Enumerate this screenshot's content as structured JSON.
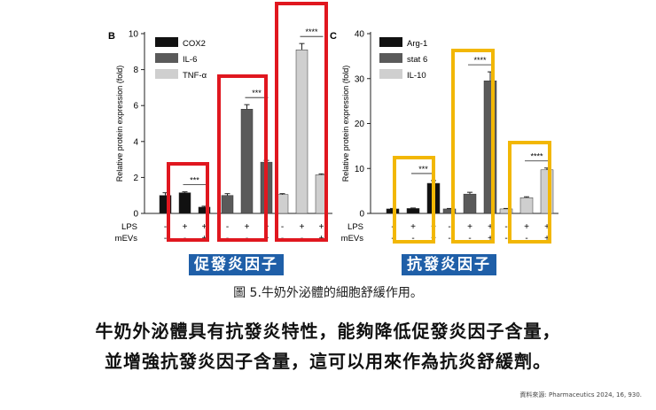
{
  "chart_data": [
    {
      "type": "bar",
      "panel_letter": "B",
      "ylabel": "Relative protein expression (fold)",
      "ylim": [
        0,
        10
      ],
      "yticks": [
        "0",
        "2",
        "4",
        "6",
        "8",
        "10"
      ],
      "legend": [
        "COX2",
        "IL-6",
        "TNF-α"
      ],
      "legend_position": "top-left",
      "row_labels": [
        "LPS",
        "mEVs"
      ],
      "groups": [
        {
          "name": "COX2",
          "lps": [
            "-",
            "+",
            "+"
          ],
          "mevs": [
            "-",
            "-",
            "+"
          ],
          "values": [
            1.0,
            1.15,
            0.35
          ],
          "errors": [
            0.15,
            0.05,
            0.05
          ],
          "sig": "***"
        },
        {
          "name": "IL-6",
          "lps": [
            "-",
            "+",
            "+"
          ],
          "mevs": [
            "-",
            "-",
            "+"
          ],
          "values": [
            1.0,
            5.8,
            2.85
          ],
          "errors": [
            0.1,
            0.25,
            0.1
          ],
          "sig": "***"
        },
        {
          "name": "TNF-α",
          "lps": [
            "-",
            "+",
            "+"
          ],
          "mevs": [
            "-",
            "-",
            "+"
          ],
          "values": [
            1.05,
            9.1,
            2.15
          ],
          "errors": [
            0.05,
            0.35,
            0.05
          ],
          "sig": "****"
        }
      ]
    },
    {
      "type": "bar",
      "panel_letter": "C",
      "ylabel": "Relative protein expression (fold)",
      "ylim": [
        0,
        40
      ],
      "yticks": [
        "0",
        "10",
        "20",
        "30",
        "40"
      ],
      "legend": [
        "Arg-1",
        "stat 6",
        "IL-10"
      ],
      "legend_position": "top-left",
      "row_labels": [
        "LPS",
        "mEVs"
      ],
      "groups": [
        {
          "name": "Arg-1",
          "lps": [
            "-",
            "+",
            "+"
          ],
          "mevs": [
            "-",
            "-",
            "+"
          ],
          "values": [
            1.0,
            1.1,
            6.7
          ],
          "errors": [
            0.1,
            0.1,
            0.6
          ],
          "sig": "***"
        },
        {
          "name": "stat 6",
          "lps": [
            "-",
            "+",
            "+"
          ],
          "mevs": [
            "-",
            "-",
            "+"
          ],
          "values": [
            1.0,
            4.3,
            29.5
          ],
          "errors": [
            0.1,
            0.4,
            2.0
          ],
          "sig": "****"
        },
        {
          "name": "IL-10",
          "lps": [
            "-",
            "+",
            "+"
          ],
          "mevs": [
            "-",
            "-",
            "+"
          ],
          "values": [
            1.0,
            3.5,
            9.7
          ],
          "errors": [
            0.1,
            0.2,
            0.4
          ],
          "sig": "****"
        }
      ]
    }
  ],
  "colors": {
    "cox2_arg1": "#111111",
    "il6_stat6": "#5a5a5a",
    "tnf_il10": "#cfcfcf",
    "red_box": "#e0171f",
    "yellow_box": "#f2b705",
    "label_bg": "#1f5fa8"
  },
  "highlight_labels": [
    "促發炎因子",
    "抗發炎因子"
  ],
  "caption": "圖 5.牛奶外泌體的細胞舒緩作用。",
  "tagline_1": "牛奶外泌體具有抗發炎特性，能夠降低促發炎因子含量，",
  "tagline_2": "並增強抗發炎因子含量，這可以用來作為抗炎舒緩劑。",
  "source": "資料來源: Pharmaceutics 2024, 16, 930."
}
